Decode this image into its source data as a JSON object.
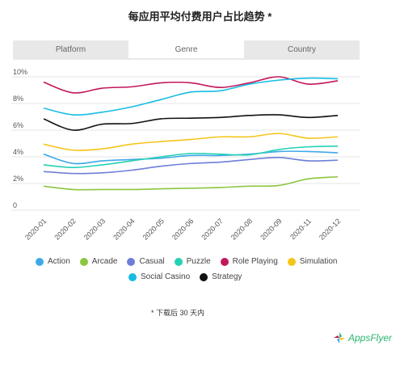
{
  "title": "每应用平均付费用户占比趋势 *",
  "tabs": [
    {
      "label": "Platform",
      "active": false
    },
    {
      "label": "Genre",
      "active": true
    },
    {
      "label": "Country",
      "active": false
    }
  ],
  "footnote": "* 下载后 30 天内",
  "logo": {
    "text": "AppsFlyer",
    "color": "#2bb46e"
  },
  "chart_data": {
    "type": "line",
    "x": [
      "2020-01",
      "2020-02",
      "2020-03",
      "2020-04",
      "2020-05",
      "2020-06",
      "2020-07",
      "2020-08",
      "2020-09",
      "2020-11",
      "2020-12"
    ],
    "yticks": [
      "0",
      "2%",
      "4%",
      "6%",
      "8%",
      "10%"
    ],
    "ylim": [
      0,
      10
    ],
    "grid": true,
    "legend_position": "bottom",
    "series": [
      {
        "name": "Action",
        "color": "#3fa9e8",
        "values": [
          4.2,
          3.5,
          3.7,
          3.8,
          3.9,
          4.1,
          4.1,
          4.2,
          4.4,
          4.4,
          4.3
        ]
      },
      {
        "name": "Arcade",
        "color": "#8cc63f",
        "values": [
          1.8,
          1.55,
          1.55,
          1.55,
          1.6,
          1.65,
          1.7,
          1.8,
          1.85,
          2.35,
          2.5
        ]
      },
      {
        "name": "Casual",
        "color": "#6e7ed8",
        "values": [
          2.9,
          2.75,
          2.8,
          3.0,
          3.3,
          3.5,
          3.6,
          3.8,
          3.95,
          3.7,
          3.75
        ]
      },
      {
        "name": "Puzzle",
        "color": "#25d1b3",
        "values": [
          3.4,
          3.2,
          3.4,
          3.7,
          4.0,
          4.25,
          4.2,
          4.15,
          4.55,
          4.75,
          4.8
        ]
      },
      {
        "name": "Role Playing",
        "color": "#c2185b",
        "values": [
          9.6,
          8.8,
          9.15,
          9.25,
          9.55,
          9.55,
          9.2,
          9.55,
          10.0,
          9.45,
          9.7
        ]
      },
      {
        "name": "Simulation",
        "color": "#f5c518",
        "values": [
          4.95,
          4.5,
          4.6,
          4.95,
          5.15,
          5.3,
          5.5,
          5.5,
          5.75,
          5.4,
          5.5
        ]
      },
      {
        "name": "Social Casino",
        "color": "#16bde3",
        "values": [
          7.65,
          7.15,
          7.35,
          7.75,
          8.3,
          8.85,
          8.95,
          9.45,
          9.75,
          9.9,
          9.85
        ]
      },
      {
        "name": "Strategy",
        "color": "#111111",
        "values": [
          6.85,
          6.0,
          6.45,
          6.5,
          6.85,
          6.9,
          6.95,
          7.1,
          7.15,
          6.95,
          7.1
        ]
      }
    ]
  }
}
